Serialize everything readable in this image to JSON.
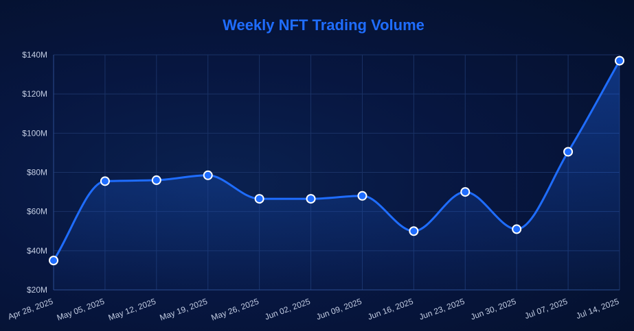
{
  "colors": {
    "title": "#1f6dff",
    "line": "#1f6dff",
    "point_fill": "#1f6dff",
    "point_stroke": "#ffffff",
    "grid": "#1a3266",
    "axis": "#2b4c8f",
    "tick_text": "#c3cde3"
  },
  "chart_data": {
    "type": "line",
    "title": "Weekly NFT Trading Volume",
    "xlabel": "",
    "ylabel": "",
    "categories": [
      "Apr 28, 2025",
      "May 05, 2025",
      "May 12, 2025",
      "May 19, 2025",
      "May 26, 2025",
      "Jun 02, 2025",
      "Jun 09, 2025",
      "Jun 16, 2025",
      "Jun 23, 2025",
      "Jun 30, 2025",
      "Jul 07, 2025",
      "Jul 14, 2025"
    ],
    "series": [
      {
        "name": "Weekly NFT Trading Volume",
        "values": [
          35,
          75.5,
          76,
          78.5,
          66.5,
          66.5,
          68,
          50,
          70,
          51,
          90.5,
          137
        ]
      }
    ],
    "y_ticks": [
      20,
      40,
      60,
      80,
      100,
      120,
      140
    ],
    "y_tick_labels": [
      "$20M",
      "$40M",
      "$60M",
      "$80M",
      "$100M",
      "$120M",
      "$140M"
    ],
    "ylim": [
      20,
      140
    ],
    "grid": true,
    "legend": "none"
  }
}
